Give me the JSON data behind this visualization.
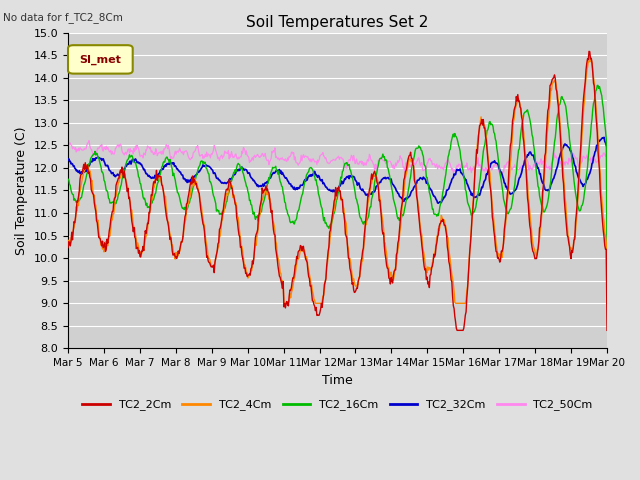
{
  "title": "Soil Temperatures Set 2",
  "title_note": "No data for f_TC2_8Cm",
  "xlabel": "Time",
  "ylabel": "Soil Temperature (C)",
  "ylim": [
    8.0,
    15.0
  ],
  "yticks": [
    8.0,
    8.5,
    9.0,
    9.5,
    10.0,
    10.5,
    11.0,
    11.5,
    12.0,
    12.5,
    13.0,
    13.5,
    14.0,
    14.5,
    15.0
  ],
  "xtick_labels": [
    "Mar 5",
    "Mar 6",
    "Mar 7",
    "Mar 8",
    "Mar 9",
    "Mar 10",
    "Mar 11",
    "Mar 12",
    "Mar 13",
    "Mar 14",
    "Mar 15",
    "Mar 16",
    "Mar 17",
    "Mar 18",
    "Mar 19",
    "Mar 20"
  ],
  "series_colors": {
    "TC2_2Cm": "#cc0000",
    "TC2_4Cm": "#ff8800",
    "TC2_16Cm": "#00bb00",
    "TC2_32Cm": "#0000cc",
    "TC2_50Cm": "#ff88ee"
  },
  "legend_label": "SI_met",
  "legend_box_color": "#ffffcc",
  "legend_box_border": "#888800",
  "background_color": "#e0e0e0",
  "plot_bg_color": "#d0d0d0",
  "grid_color": "#ffffff",
  "n_points": 720
}
